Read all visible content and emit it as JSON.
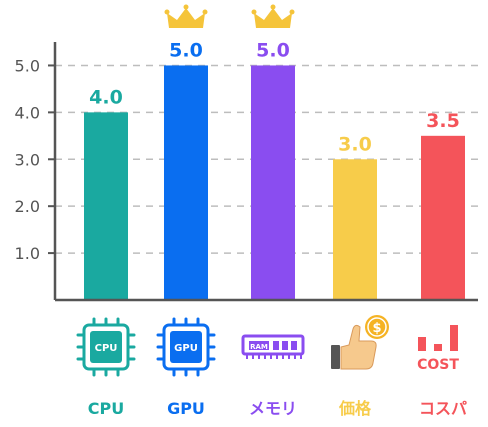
{
  "chart_data": {
    "type": "bar",
    "categories": [
      "CPU",
      "GPU",
      "メモリ",
      "価格",
      "コスパ"
    ],
    "values": [
      4.0,
      5.0,
      5.0,
      3.0,
      3.5
    ],
    "value_labels": [
      "4.0",
      "5.0",
      "5.0",
      "3.0",
      "3.5"
    ],
    "ylim": [
      0,
      5.5
    ],
    "yticks": [
      "1.0",
      "2.0",
      "3.0",
      "4.0",
      "5.0"
    ],
    "ytick_values": [
      1,
      2,
      3,
      4,
      5
    ],
    "grid": true,
    "colors": [
      "#1aa9a0",
      "#0a6ef0",
      "#8a4df0",
      "#f7cc4a",
      "#f4545a"
    ],
    "top_scorers_marked": [
      "GPU",
      "メモリ"
    ]
  },
  "icons": [
    {
      "name": "cpu-chip-icon",
      "text": "CPU"
    },
    {
      "name": "gpu-chip-icon",
      "text": "GPU"
    },
    {
      "name": "ram-module-icon",
      "text": "RAM"
    },
    {
      "name": "thumbs-up-coin-icon",
      "text": "$"
    },
    {
      "name": "cost-bars-icon",
      "text": "COST"
    }
  ],
  "crown_color": "#f5c43a"
}
